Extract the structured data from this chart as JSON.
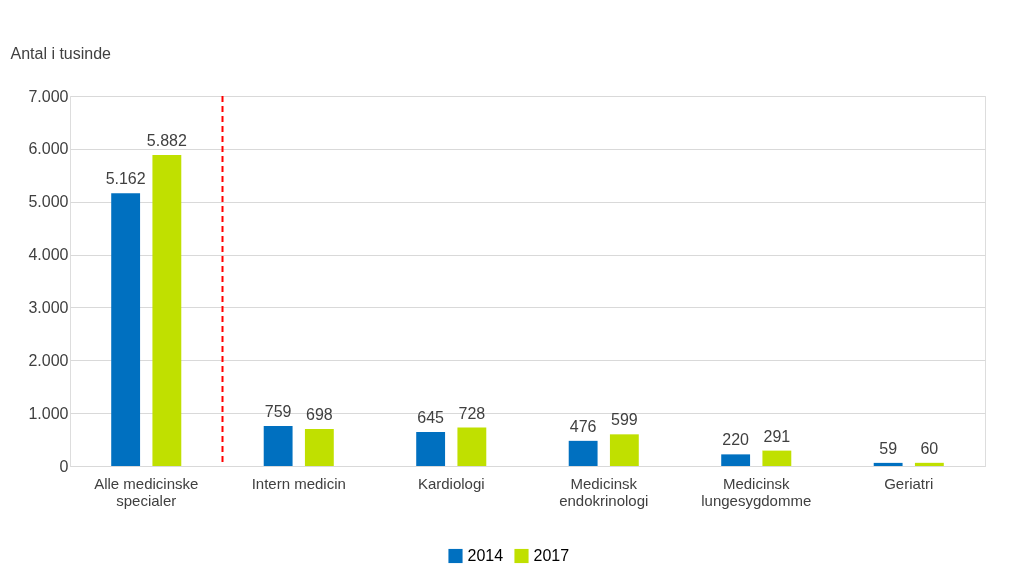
{
  "chart_data": {
    "type": "bar",
    "ylabel": "Antal i tusinde",
    "categories": [
      "Alle medicinske\nspecialer",
      "Intern medicin",
      "Kardiologi",
      "Medicinsk\nendokrinologi",
      "Medicinsk\nlungesygdomme",
      "Geriatri"
    ],
    "series": [
      {
        "name": "2014",
        "color": "#0070c0",
        "values": [
          5162,
          759,
          645,
          476,
          220,
          59
        ],
        "value_labels": [
          "5.162",
          "759",
          "645",
          "476",
          "220",
          "59"
        ]
      },
      {
        "name": "2017",
        "color": "#c0e000",
        "values": [
          5882,
          698,
          728,
          599,
          291,
          60
        ],
        "value_labels": [
          "5.882",
          "698",
          "728",
          "599",
          "291",
          "60"
        ]
      }
    ],
    "ylim": [
      0,
      7000
    ],
    "yticks": [
      {
        "value": 0,
        "label": "0"
      },
      {
        "value": 1000,
        "label": "1.000"
      },
      {
        "value": 2000,
        "label": "2.000"
      },
      {
        "value": 3000,
        "label": "3.000"
      },
      {
        "value": 4000,
        "label": "4.000"
      },
      {
        "value": 5000,
        "label": "5.000"
      },
      {
        "value": 6000,
        "label": "6.000"
      },
      {
        "value": 7000,
        "label": "7.000"
      }
    ],
    "ref_lines": [
      {
        "axis": "x",
        "value": "Alle medicinske\nspecialer",
        "color": "#ff0000",
        "line_style": "dashed"
      }
    ],
    "grid": "y",
    "legend": "bottom"
  }
}
